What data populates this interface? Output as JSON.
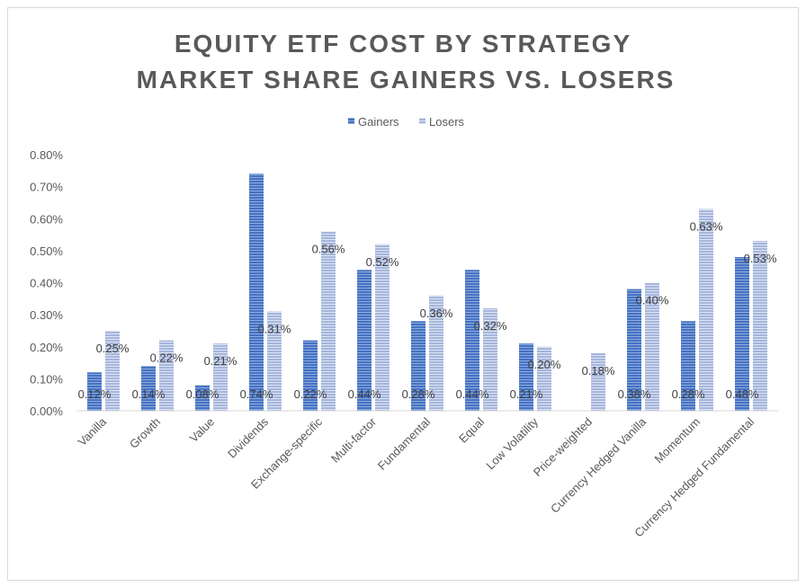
{
  "chart_data": {
    "type": "bar",
    "title": [
      "EQUITY ETF COST BY STRATEGY",
      "MARKET SHARE GAINERS VS. LOSERS"
    ],
    "xlabel": "",
    "ylabel": "",
    "ylim": [
      0,
      0.8
    ],
    "yticks": [
      "0.00%",
      "0.10%",
      "0.20%",
      "0.30%",
      "0.40%",
      "0.50%",
      "0.60%",
      "0.70%",
      "0.80%"
    ],
    "grid": false,
    "legend_position": "top",
    "categories": [
      "Vanilla",
      "Growth",
      "Value",
      "Dividends",
      "Exchange-specific",
      "Multi-factor",
      "Fundamental",
      "Equal",
      "Low Volatility",
      "Price-weighted",
      "Currency Hedged Vanilla",
      "Momentum",
      "Currency Hedged Fundamental"
    ],
    "series": [
      {
        "name": "Gainers",
        "color": "#4472c4",
        "values": [
          0.12,
          0.14,
          0.08,
          0.74,
          0.22,
          0.44,
          0.28,
          0.44,
          0.21,
          null,
          0.38,
          0.28,
          0.48
        ],
        "labels": [
          "0.12%",
          "0.14%",
          "0.08%",
          "0.74%",
          "0.22%",
          "0.44%",
          "0.28%",
          "0.44%",
          "0.21%",
          null,
          "0.38%",
          "0.28%",
          "0.48%"
        ]
      },
      {
        "name": "Losers",
        "color": "#a5b5dc",
        "values": [
          0.25,
          0.22,
          0.21,
          0.31,
          0.56,
          0.52,
          0.36,
          0.32,
          0.2,
          0.18,
          0.4,
          0.63,
          0.53
        ],
        "labels": [
          "0.25%",
          "0.22%",
          "0.21%",
          "0.31%",
          "0.56%",
          "0.52%",
          "0.36%",
          "0.32%",
          "0.20%",
          "0.18%",
          "0.40%",
          "0.63%",
          "0.53%"
        ]
      }
    ]
  }
}
